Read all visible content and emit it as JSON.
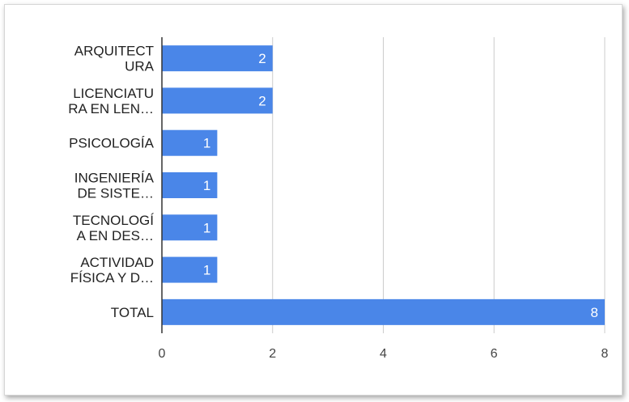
{
  "chart_data": {
    "type": "bar",
    "orientation": "horizontal",
    "title": "",
    "xlabel": "",
    "ylabel": "",
    "categories": [
      [
        "ARQUITECT",
        "URA"
      ],
      [
        "LICENCIATU",
        "RA EN LEN…"
      ],
      [
        "PSICOLOGÍA"
      ],
      [
        "INGENIERÍA",
        "DE SISTE…"
      ],
      [
        "TECNOLOGÍ",
        "A EN DES…"
      ],
      [
        "ACTIVIDAD",
        "FÍSICA Y D…"
      ],
      [
        "TOTAL"
      ]
    ],
    "values": [
      2,
      2,
      1,
      1,
      1,
      1,
      8
    ],
    "data_labels": [
      "2",
      "2",
      "1",
      "1",
      "1",
      "1",
      "8"
    ],
    "xlim": [
      0,
      8
    ],
    "xticks": [
      "0",
      "2",
      "4",
      "6",
      "8"
    ],
    "grid": true,
    "legend": "none",
    "colors": {
      "bar": "#4a86e8",
      "grid": "#cccccc",
      "axis": "#333333"
    }
  }
}
